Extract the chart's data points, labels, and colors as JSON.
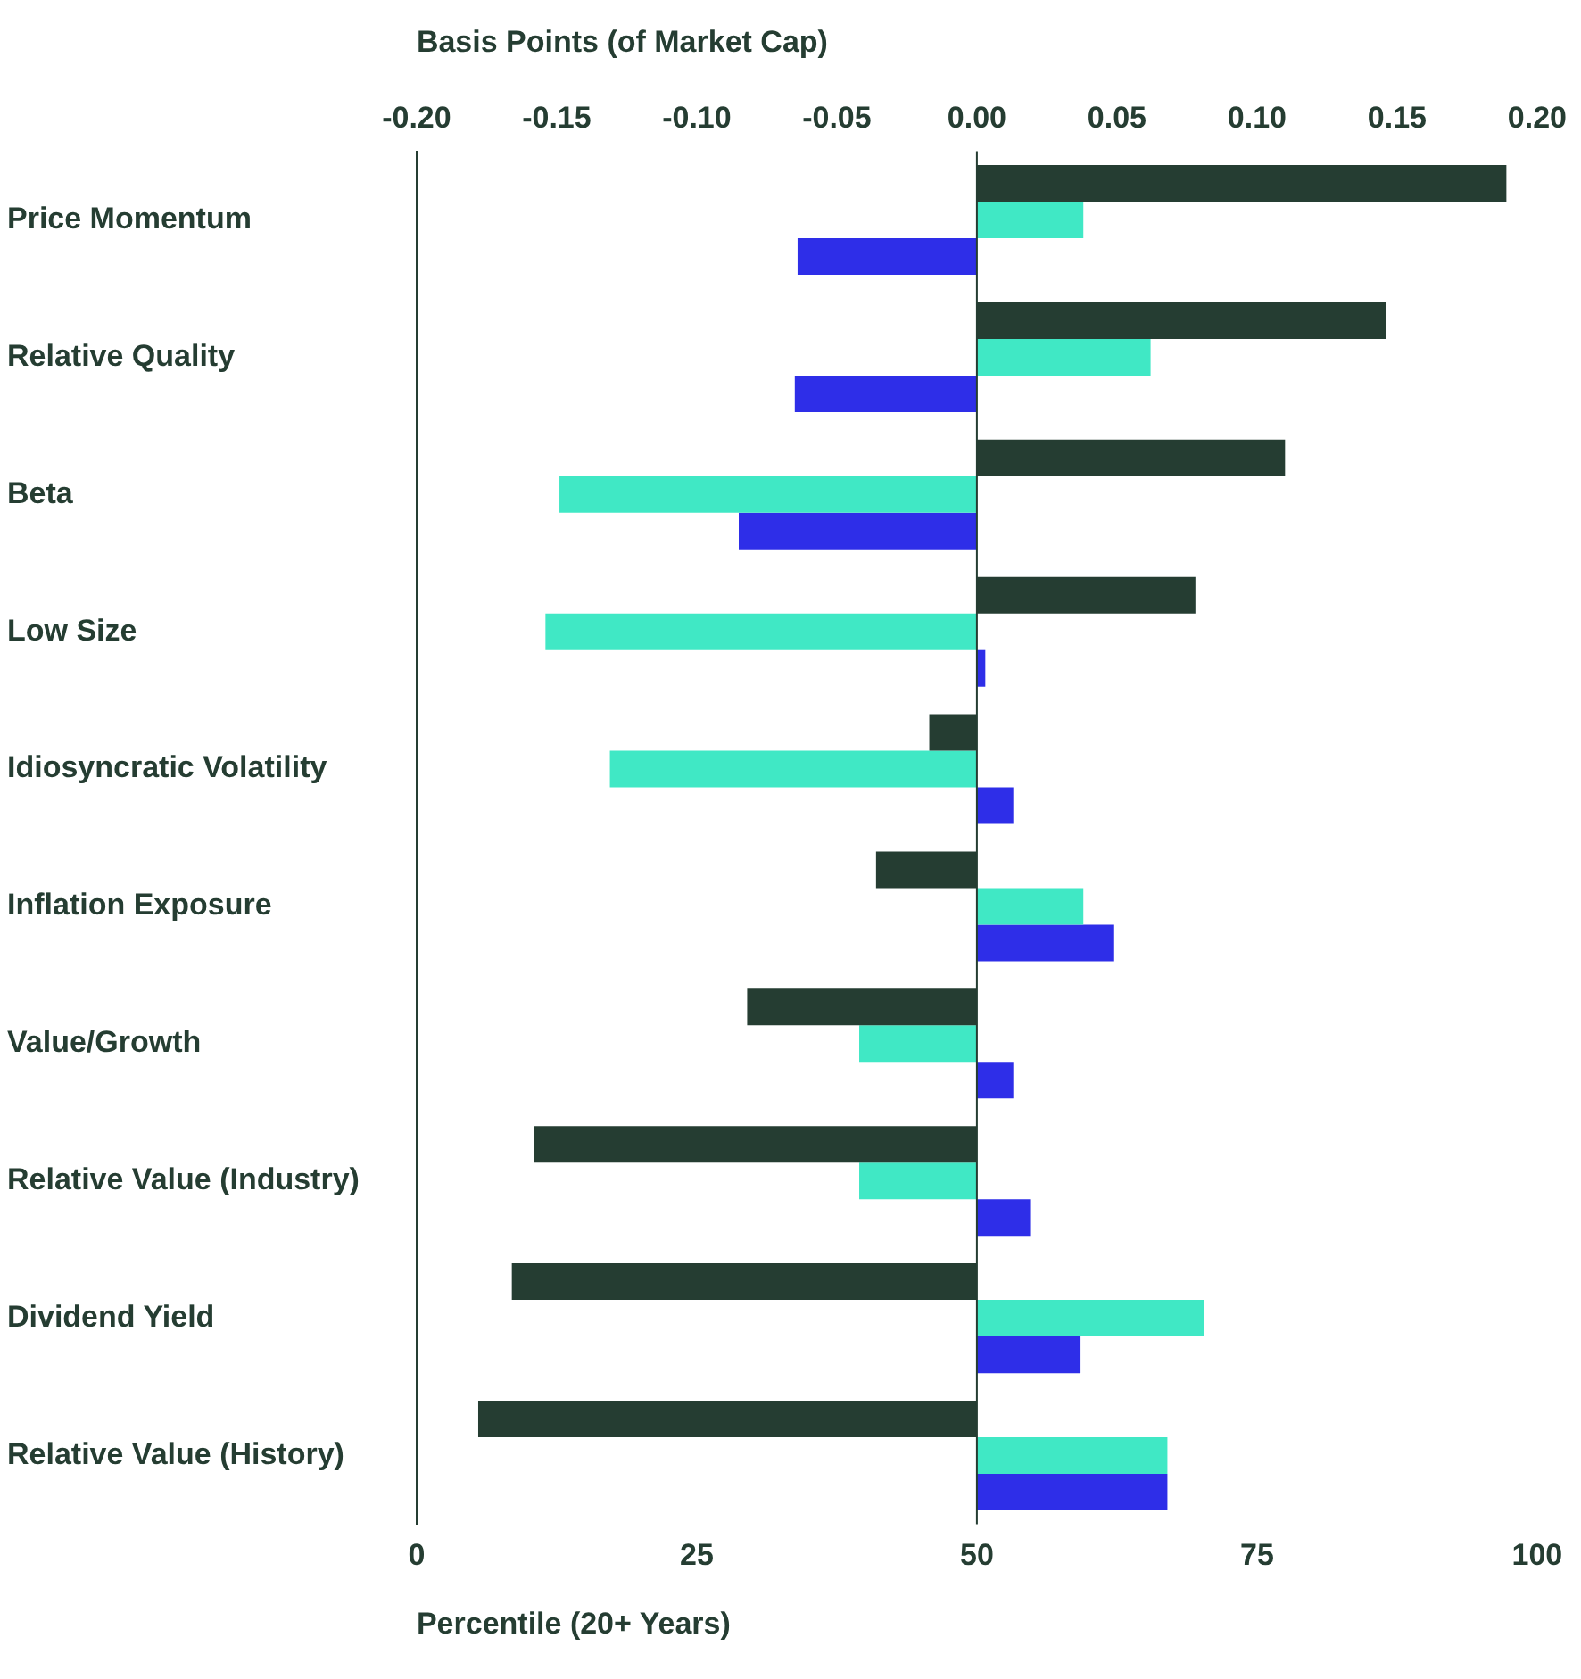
{
  "chart_data": {
    "type": "bar",
    "orientation": "horizontal",
    "categories": [
      "Price Momentum",
      "Relative Quality",
      "Beta",
      "Low Size",
      "Idiosyncratic Volatility",
      "Inflation Exposure",
      "Value/Growth",
      "Relative Value (Industry)",
      "Dividend Yield",
      "Relative Value (History)"
    ],
    "series": [
      {
        "color": "#253d32",
        "axis": "x2",
        "values": [
          0.189,
          0.146,
          0.11,
          0.078,
          -0.017,
          -0.036,
          -0.082,
          -0.158,
          -0.166,
          -0.178
        ]
      },
      {
        "color": "#40e8c5",
        "axis": "x2",
        "values": [
          0.038,
          0.062,
          -0.149,
          -0.154,
          -0.131,
          0.038,
          -0.042,
          -0.042,
          0.081,
          0.068
        ]
      },
      {
        "color": "#2e2ee8",
        "axis": "x2",
        "values": [
          -0.064,
          -0.065,
          -0.085,
          0.003,
          0.013,
          0.049,
          0.013,
          0.019,
          0.037,
          0.068
        ]
      }
    ],
    "x2label": "Basis Points (of Market Cap)",
    "x2lim": [
      -0.2,
      0.2
    ],
    "x2ticks": [
      {
        "value": -0.2,
        "label": "-0.20"
      },
      {
        "value": -0.15,
        "label": "-0.15"
      },
      {
        "value": -0.1,
        "label": "-0.10"
      },
      {
        "value": -0.05,
        "label": "-0.05"
      },
      {
        "value": 0,
        "label": "0.00"
      },
      {
        "value": 0.05,
        "label": "0.05"
      },
      {
        "value": 0.1,
        "label": "0.10"
      },
      {
        "value": 0.15,
        "label": "0.15"
      },
      {
        "value": 0.2,
        "label": "0.20"
      }
    ],
    "xlabel": "Percentile (20+ Years)",
    "xlim": [
      0,
      100
    ],
    "xticks": [
      0,
      25,
      50,
      75,
      100
    ],
    "ref_lines": [
      {
        "axis": "x2",
        "value": 0,
        "color": "#253d32"
      }
    ],
    "grid": false,
    "legend": false
  }
}
